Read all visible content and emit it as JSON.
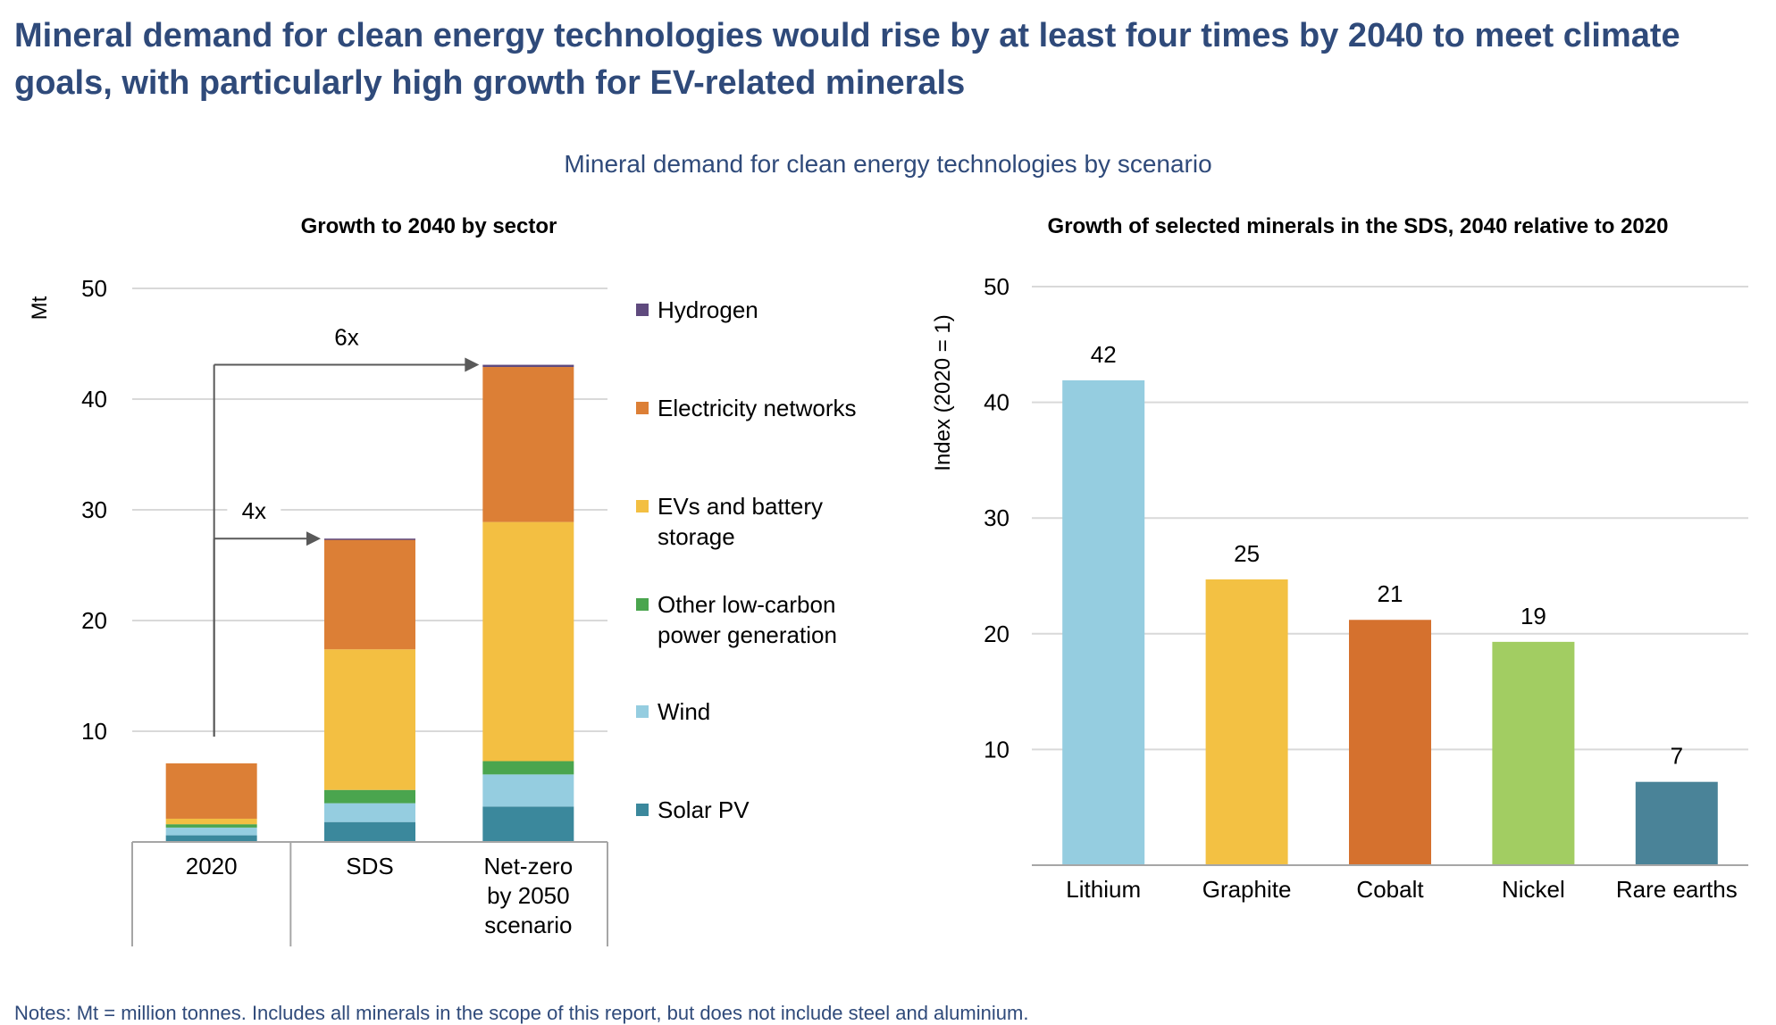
{
  "headline": "Mineral demand for clean energy technologies would rise by at least four times by 2040 to meet climate goals, with particularly high growth for EV-related minerals",
  "subtitle": "Mineral demand for clean energy technologies by scenario",
  "note": "Notes: Mt = million tonnes. Includes all minerals in the scope of this report, but does not include steel and aluminium.",
  "chart_data": [
    {
      "type": "bar",
      "stacked": true,
      "title": "Growth to 2040 by sector",
      "xlabel": "",
      "ylabel": "Mt",
      "ylim": [
        0,
        50
      ],
      "yticks": [
        10,
        20,
        30,
        40,
        50
      ],
      "grid": true,
      "legend_position": "right",
      "categories": [
        "2020",
        "SDS",
        "Net-zero by 2050 scenario"
      ],
      "series": [
        {
          "name": "Solar PV",
          "color": "#3b889c",
          "values": [
            0.6,
            1.8,
            3.2
          ]
        },
        {
          "name": "Wind",
          "color": "#95cde0",
          "values": [
            0.7,
            1.7,
            2.9
          ]
        },
        {
          "name": "Other low-carbon power generation",
          "color": "#4aa54e",
          "values": [
            0.3,
            1.2,
            1.2
          ]
        },
        {
          "name": "EVs and battery storage",
          "color": "#f3bf42",
          "values": [
            0.5,
            12.7,
            21.6
          ]
        },
        {
          "name": "Electricity networks",
          "color": "#dc7f36",
          "values": [
            5.0,
            9.9,
            14.0
          ]
        },
        {
          "name": "Hydrogen",
          "color": "#5f4a7e",
          "values": [
            0.0,
            0.1,
            0.2
          ]
        }
      ],
      "legend_order": [
        "Hydrogen",
        "Electricity networks",
        "EVs and battery storage",
        "Other low-carbon power generation",
        "Wind",
        "Solar PV"
      ],
      "annotations": [
        {
          "label": "4x",
          "from": "2020",
          "to": "SDS"
        },
        {
          "label": "6x",
          "from": "2020",
          "to": "Net-zero by 2050 scenario"
        }
      ]
    },
    {
      "type": "bar",
      "title": "Growth of selected minerals in the SDS, 2040 relative to 2020",
      "xlabel": "",
      "ylabel": "Index (2020 = 1)",
      "ylim": [
        0,
        50
      ],
      "yticks": [
        10,
        20,
        30,
        40,
        50
      ],
      "grid": true,
      "categories": [
        "Lithium",
        "Graphite",
        "Cobalt",
        "Nickel",
        "Rare earths"
      ],
      "values": [
        41.9,
        24.7,
        21.2,
        19.3,
        7.2
      ],
      "data_labels": [
        "42",
        "25",
        "21",
        "19",
        "7"
      ],
      "colors": [
        "#95cde0",
        "#f3c143",
        "#d5712e",
        "#a2cd62",
        "#4a8398"
      ]
    }
  ]
}
